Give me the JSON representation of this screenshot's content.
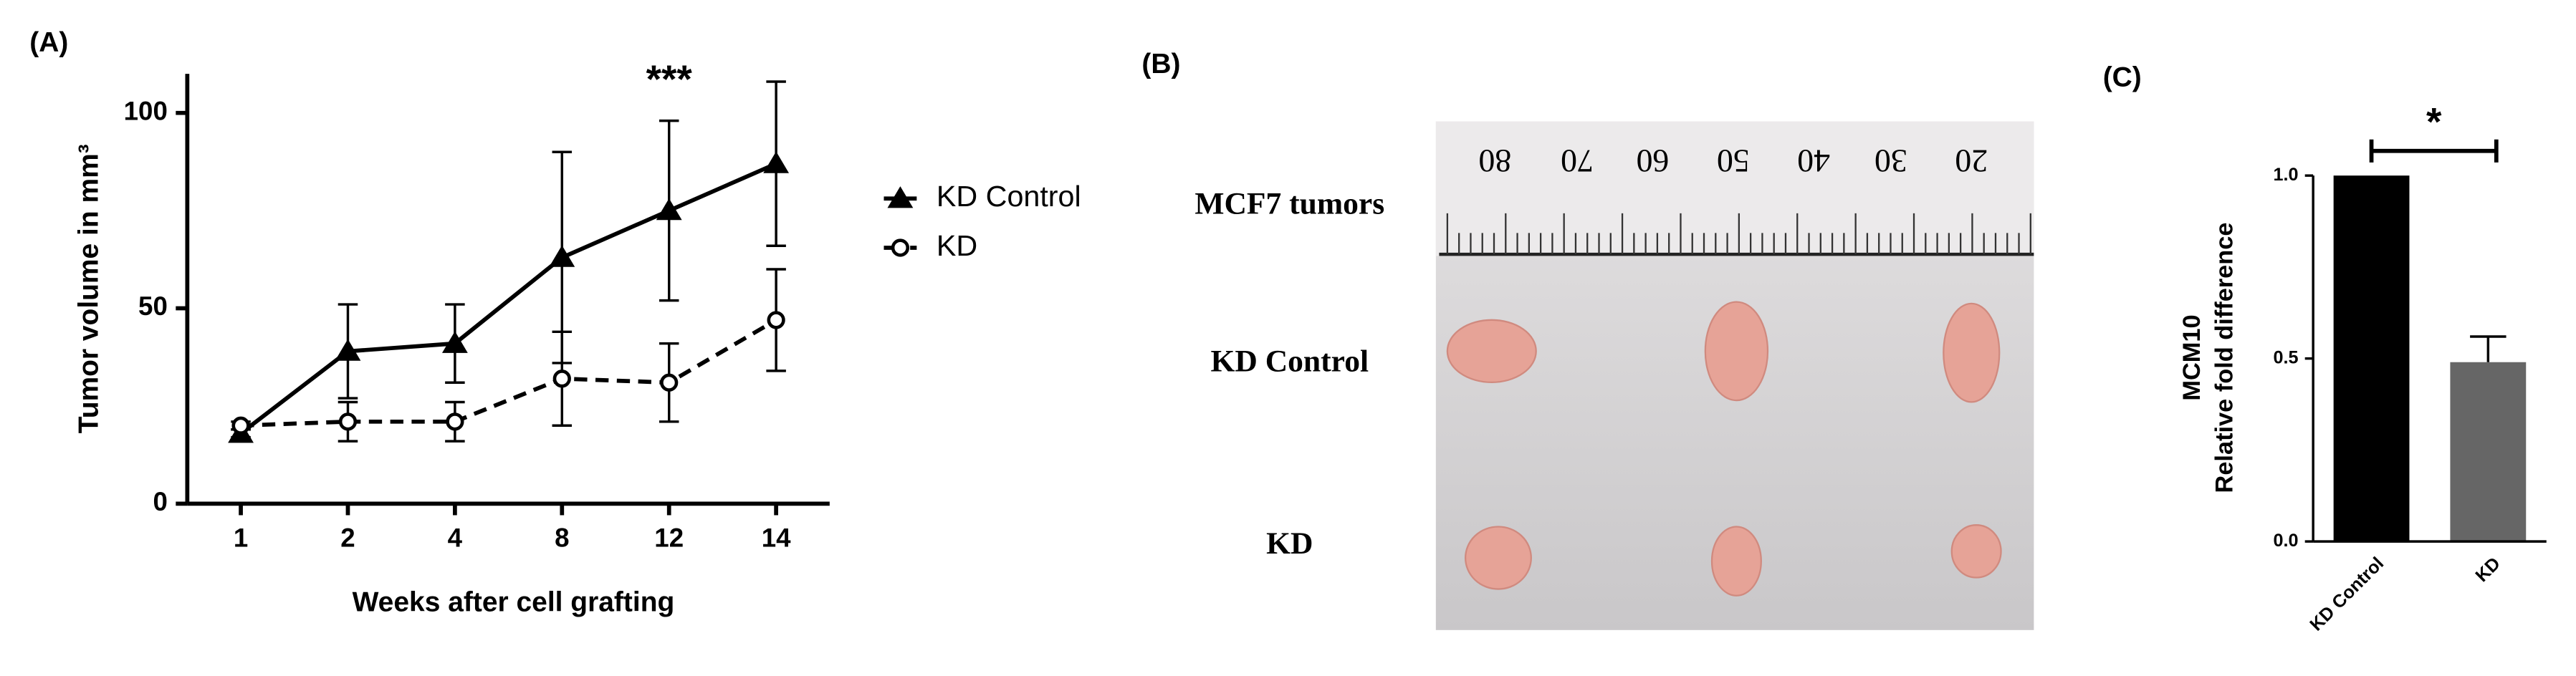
{
  "panel_labels": [
    "(A)",
    "(B)",
    "(C)"
  ],
  "photo": {
    "labels": [
      "MCF7 tumors",
      "KD Control",
      "KD"
    ],
    "ruler": [
      "80",
      "70",
      "60",
      "50",
      "40",
      "30",
      "20"
    ]
  },
  "chart_data": [
    {
      "type": "line",
      "ylabel": "Tumor volume in mm³",
      "xlabel": "Weeks after cell grafting",
      "annotation": "***",
      "categories": [
        "1",
        "2",
        "4",
        "8",
        "12",
        "14"
      ],
      "series": [
        {
          "name": "KD Control",
          "color": "#000000",
          "line_style": "solid",
          "marker": "triangle",
          "marker_fill": "#000000",
          "values": [
            18,
            39,
            41,
            63,
            75,
            87
          ],
          "errors": [
            1,
            12,
            10,
            27,
            23,
            21
          ]
        },
        {
          "name": "KD",
          "color": "#000000",
          "line_style": "dashed",
          "marker": "circle",
          "marker_fill": "#ffffff",
          "values": [
            20,
            21,
            21,
            32,
            31,
            47
          ],
          "errors": [
            1,
            5,
            5,
            12,
            10,
            13
          ]
        }
      ],
      "ylim": [
        0,
        110
      ],
      "yticks": [
        0,
        50,
        100
      ]
    },
    {
      "type": "bar",
      "ylabel": [
        "MCM10",
        "Relative fold difference"
      ],
      "annotation": "*",
      "categories": [
        "KD Control",
        "KD"
      ],
      "values": [
        1.0,
        0.49
      ],
      "errors": [
        0,
        0.07
      ],
      "colors": [
        "#000000",
        "#666666"
      ],
      "ylim": [
        0,
        1
      ],
      "yticks": [
        {
          "value": 0,
          "label": "0.0"
        },
        {
          "value": 0.5,
          "label": "0.5"
        },
        {
          "value": 1,
          "label": "1.0"
        }
      ]
    }
  ]
}
